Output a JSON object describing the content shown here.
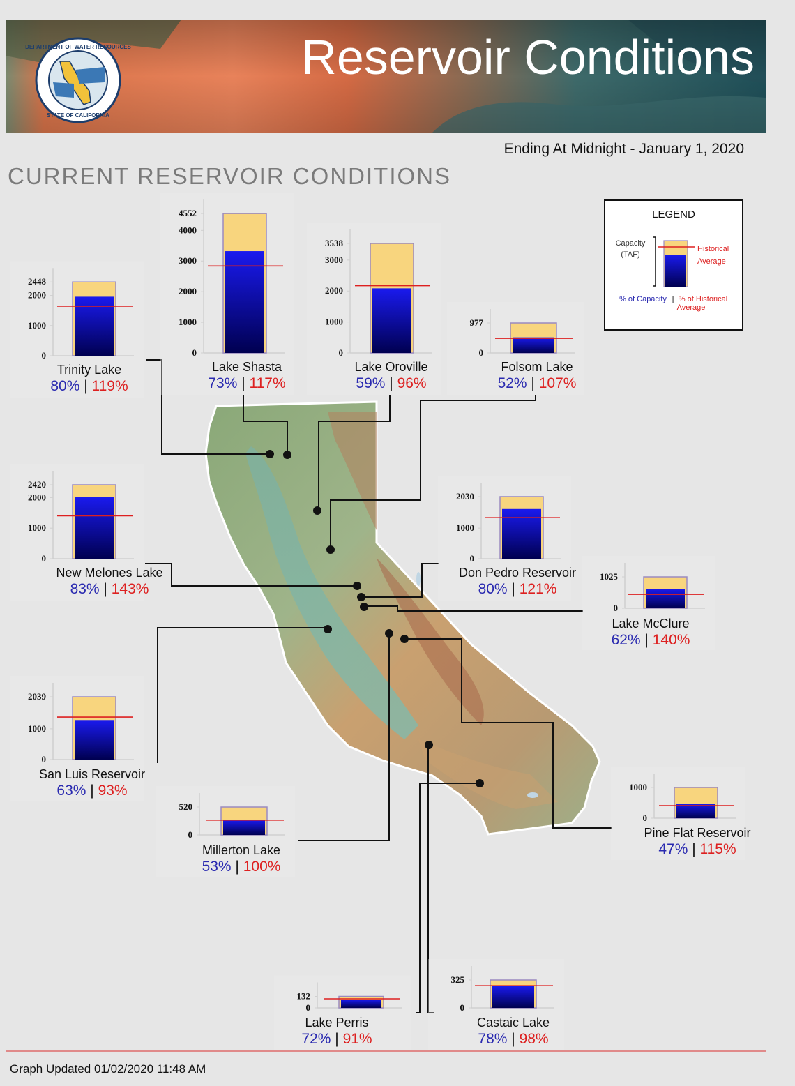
{
  "header": {
    "title": "Reservoir Conditions",
    "subtitle": "Ending At Midnight - January 1, 2020",
    "section_title": "CURRENT RESERVOIR CONDITIONS",
    "seal_top": "DEPARTMENT OF WATER RESOURCES",
    "seal_bottom": "STATE OF CALIFORNIA"
  },
  "legend": {
    "title": "LEGEND",
    "capacity_label_1": "Capacity",
    "capacity_label_2": "(TAF)",
    "hist_label_1": "Historical",
    "hist_label_2": "Average",
    "pct_capacity_label": "% of Capacity",
    "pct_hist_label_1": "% of Historical",
    "pct_hist_label_2": "Average"
  },
  "colors": {
    "capacity_fill": "#f8d57e",
    "storage_top": "#1a1aee",
    "storage_bottom": "#000050",
    "historical_line": "#dd2020",
    "pct_capacity_text": "#2a2ab0",
    "pct_hist_text": "#dd2020",
    "leader_line": "#111111"
  },
  "chart_data": [
    {
      "type": "bar",
      "name": "Trinity Lake",
      "capacity": 2448,
      "storage": 1958,
      "historical_avg": 1645,
      "pct_capacity": "80%",
      "pct_hist": "119%",
      "ticks": [
        0,
        1000,
        2000,
        2448
      ]
    },
    {
      "type": "bar",
      "name": "Lake Shasta",
      "capacity": 4552,
      "storage": 3323,
      "historical_avg": 2840,
      "pct_capacity": "73%",
      "pct_hist": "117%",
      "ticks": [
        0,
        1000,
        2000,
        3000,
        4000,
        4552
      ]
    },
    {
      "type": "bar",
      "name": "Lake Oroville",
      "capacity": 3538,
      "storage": 2087,
      "historical_avg": 2174,
      "pct_capacity": "59%",
      "pct_hist": "96%",
      "ticks": [
        0,
        1000,
        2000,
        3000,
        3538
      ]
    },
    {
      "type": "bar",
      "name": "Folsom Lake",
      "capacity": 977,
      "storage": 508,
      "historical_avg": 475,
      "pct_capacity": "52%",
      "pct_hist": "107%",
      "ticks": [
        0,
        977
      ]
    },
    {
      "type": "bar",
      "name": "New Melones Lake",
      "capacity": 2420,
      "storage": 2009,
      "historical_avg": 1405,
      "pct_capacity": "83%",
      "pct_hist": "143%",
      "ticks": [
        0,
        1000,
        2000,
        2420
      ]
    },
    {
      "type": "bar",
      "name": "Don Pedro Reservoir",
      "capacity": 2030,
      "storage": 1624,
      "historical_avg": 1342,
      "pct_capacity": "80%",
      "pct_hist": "121%",
      "ticks": [
        0,
        1000,
        2030
      ]
    },
    {
      "type": "bar",
      "name": "Lake McClure",
      "capacity": 1025,
      "storage": 636,
      "historical_avg": 454,
      "pct_capacity": "62%",
      "pct_hist": "140%",
      "ticks": [
        0,
        1025
      ]
    },
    {
      "type": "bar",
      "name": "San Luis Reservoir",
      "capacity": 2039,
      "storage": 1285,
      "historical_avg": 1381,
      "pct_capacity": "63%",
      "pct_hist": "93%",
      "ticks": [
        0,
        1000,
        2039
      ]
    },
    {
      "type": "bar",
      "name": "Millerton Lake",
      "capacity": 520,
      "storage": 276,
      "historical_avg": 276,
      "pct_capacity": "53%",
      "pct_hist": "100%",
      "ticks": [
        0,
        520
      ]
    },
    {
      "type": "bar",
      "name": "Pine Flat Reservoir",
      "capacity": 1000,
      "storage": 470,
      "historical_avg": 409,
      "pct_capacity": "47%",
      "pct_hist": "115%",
      "ticks": [
        0,
        1000
      ]
    },
    {
      "type": "bar",
      "name": "Lake Perris",
      "capacity": 132,
      "storage": 95,
      "historical_avg": 104,
      "pct_capacity": "72%",
      "pct_hist": "91%",
      "ticks": [
        0,
        132
      ]
    },
    {
      "type": "bar",
      "name": "Castaic Lake",
      "capacity": 325,
      "storage": 254,
      "historical_avg": 259,
      "pct_capacity": "78%",
      "pct_hist": "98%",
      "ticks": [
        0,
        325
      ]
    }
  ],
  "footer": {
    "updated": "Graph Updated 01/02/2020 11:48 AM"
  }
}
